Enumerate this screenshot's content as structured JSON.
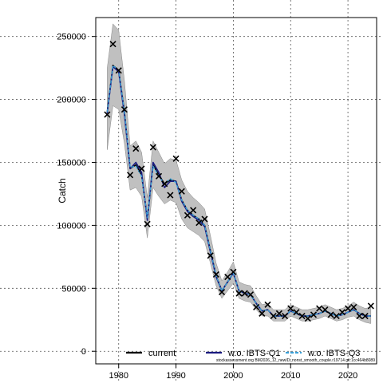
{
  "chart_data": {
    "type": "line",
    "title": "",
    "xlabel": "",
    "ylabel": "Catch",
    "xlim": [
      1976,
      2025
    ],
    "ylim": [
      -10000,
      265000
    ],
    "x_ticks": [
      1980,
      1990,
      2000,
      2010,
      2020
    ],
    "y_ticks": [
      0,
      50000,
      100000,
      150000,
      200000,
      250000
    ],
    "grid": true,
    "legend_position": "bottom",
    "footnote": "stockassessment.org BM2026_12_newID_nonst_smooth_couple.r19714 git:1cc464b8089",
    "series": [
      {
        "name": "current",
        "color": "#000000",
        "style": "solid",
        "x": [
          1978,
          1979,
          1980,
          1981,
          1982,
          1983,
          1984,
          1985,
          1986,
          1987,
          1988,
          1989,
          1990,
          1991,
          1992,
          1993,
          1994,
          1995,
          1996,
          1997,
          1998,
          1999,
          2000,
          2001,
          2002,
          2003,
          2004,
          2005,
          2006,
          2007,
          2008,
          2009,
          2010,
          2011,
          2012,
          2013,
          2014,
          2015,
          2016,
          2017,
          2018,
          2019,
          2020,
          2021,
          2022,
          2023,
          2024
        ],
        "y": [
          190000,
          227000,
          223000,
          190000,
          145000,
          148000,
          140000,
          105000,
          148000,
          140000,
          133000,
          136000,
          135000,
          120000,
          112000,
          108000,
          105000,
          100000,
          80000,
          60000,
          48000,
          55000,
          62000,
          48000,
          46000,
          45000,
          38000,
          32000,
          33000,
          28000,
          28000,
          28000,
          32000,
          30000,
          28000,
          28000,
          29000,
          30000,
          32000,
          30000,
          28000,
          29000,
          31000,
          33000,
          30000,
          28000,
          28000
        ]
      },
      {
        "name": "w.o. IBTS-Q1",
        "color": "#1a1a80",
        "style": "solid",
        "x": [
          1978,
          1979,
          1980,
          1981,
          1982,
          1983,
          1984,
          1985,
          1986,
          1987,
          1988,
          1989,
          1990,
          1991,
          1992,
          1993,
          1994,
          1995,
          1996,
          1997,
          1998,
          1999,
          2000,
          2001,
          2002,
          2003,
          2004,
          2005,
          2006,
          2007,
          2008,
          2009,
          2010,
          2011,
          2012,
          2013,
          2014,
          2015,
          2016,
          2017,
          2018,
          2019,
          2020,
          2021,
          2022,
          2023,
          2024
        ],
        "y": [
          189000,
          226000,
          222000,
          188000,
          145000,
          150000,
          142000,
          104000,
          150000,
          142000,
          130000,
          135000,
          135000,
          119000,
          111000,
          107000,
          104000,
          99000,
          79000,
          59000,
          48000,
          55000,
          62000,
          48000,
          46000,
          45000,
          38000,
          32000,
          33000,
          28000,
          28000,
          28000,
          32000,
          30000,
          28000,
          28000,
          29000,
          30000,
          32000,
          30000,
          28000,
          29000,
          31000,
          33000,
          30000,
          28000,
          28000
        ]
      },
      {
        "name": "w.o. IBTS-Q3",
        "color": "#3aa0d8",
        "style": "dashed",
        "x": [
          1978,
          1979,
          1980,
          1981,
          1982,
          1983,
          1984,
          1985,
          1986,
          1987,
          1988,
          1989,
          1990,
          1991,
          1992,
          1993,
          1994,
          1995,
          1996,
          1997,
          1998,
          1999,
          2000,
          2001,
          2002,
          2003,
          2004,
          2005,
          2006,
          2007,
          2008,
          2009,
          2010,
          2011,
          2012,
          2013,
          2014,
          2015,
          2016,
          2017,
          2018,
          2019,
          2020,
          2021,
          2022,
          2023,
          2024
        ],
        "y": [
          190000,
          227000,
          223000,
          190000,
          146000,
          147000,
          139000,
          106000,
          147000,
          139000,
          133000,
          137000,
          134000,
          120000,
          112000,
          108000,
          105000,
          100000,
          80000,
          60000,
          48000,
          55000,
          62000,
          48000,
          46000,
          45000,
          38000,
          32000,
          33000,
          28000,
          28000,
          28000,
          32000,
          30000,
          28000,
          28000,
          29000,
          30000,
          32000,
          30000,
          28000,
          29000,
          31000,
          33000,
          30000,
          28000,
          28000
        ]
      }
    ],
    "confidence_band": {
      "x": [
        1978,
        1979,
        1980,
        1981,
        1982,
        1983,
        1984,
        1985,
        1986,
        1987,
        1988,
        1989,
        1990,
        1991,
        1992,
        1993,
        1994,
        1995,
        1996,
        1997,
        1998,
        1999,
        2000,
        2001,
        2002,
        2003,
        2004,
        2005,
        2006,
        2007,
        2008,
        2009,
        2010,
        2011,
        2012,
        2013,
        2014,
        2015,
        2016,
        2017,
        2018,
        2019,
        2020,
        2021,
        2022,
        2023,
        2024
      ],
      "lower": [
        160000,
        195000,
        192000,
        165000,
        128000,
        130000,
        123000,
        90000,
        130000,
        123000,
        117000,
        120000,
        118000,
        105000,
        98000,
        95000,
        92000,
        87000,
        70000,
        52000,
        42000,
        48000,
        54000,
        42000,
        40000,
        39000,
        33000,
        28000,
        28000,
        24000,
        24000,
        24000,
        28000,
        26000,
        24000,
        24000,
        25000,
        26000,
        28000,
        26000,
        24000,
        25000,
        27000,
        28000,
        25000,
        23000,
        22000
      ],
      "upper": [
        225000,
        260000,
        255000,
        215000,
        163000,
        167000,
        158000,
        122000,
        167000,
        158000,
        149000,
        153000,
        152000,
        136000,
        127000,
        122000,
        118000,
        113000,
        92000,
        70000,
        56000,
        63000,
        71000,
        55000,
        53000,
        52000,
        44000,
        37000,
        38000,
        33000,
        33000,
        33000,
        37000,
        35000,
        33000,
        33000,
        34000,
        35000,
        37000,
        35000,
        33000,
        34000,
        36000,
        39000,
        36000,
        34000,
        35000
      ],
      "color": "#c0c0c0"
    },
    "observations": {
      "marker": "x",
      "x": [
        1978,
        1979,
        1980,
        1981,
        1982,
        1983,
        1984,
        1985,
        1986,
        1987,
        1988,
        1989,
        1990,
        1991,
        1992,
        1993,
        1994,
        1995,
        1996,
        1997,
        1998,
        1999,
        2000,
        2001,
        2002,
        2003,
        2004,
        2005,
        2006,
        2007,
        2008,
        2009,
        2010,
        2011,
        2012,
        2013,
        2014,
        2015,
        2016,
        2017,
        2018,
        2019,
        2020,
        2021,
        2022,
        2023,
        2024
      ],
      "y": [
        188000,
        244000,
        223000,
        192000,
        140000,
        161000,
        145000,
        101000,
        162000,
        139000,
        133000,
        124000,
        153000,
        127000,
        108000,
        112000,
        102000,
        105000,
        76000,
        61000,
        47000,
        59000,
        63000,
        46000,
        46000,
        45000,
        35000,
        30000,
        37000,
        28000,
        30000,
        28000,
        34000,
        31000,
        28000,
        26000,
        29000,
        34000,
        33000,
        29000,
        28000,
        31000,
        34000,
        35000,
        28000,
        28000,
        36000
      ]
    }
  }
}
